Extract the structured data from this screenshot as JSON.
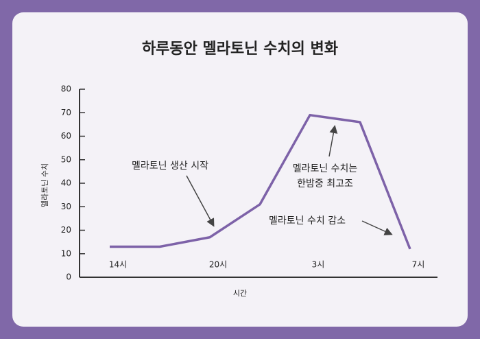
{
  "chart_data": {
    "type": "line",
    "title": "하루동안 멜라토닌 수치의 변화",
    "x_label": "시간",
    "y_label": "멜라토닌 수치",
    "categories": [
      "14시",
      null,
      "20시",
      null,
      "3시",
      null,
      "7시"
    ],
    "series": [
      {
        "name": "멜라토닌 수치",
        "color": "#7d62a8",
        "values": [
          13,
          13,
          17,
          31,
          69,
          66,
          12
        ]
      }
    ],
    "ylim": [
      0,
      80
    ],
    "yticks": [
      0,
      10,
      20,
      30,
      40,
      50,
      60,
      70,
      80
    ],
    "annotations": [
      [
        "멜라토닌 생산 시작"
      ],
      [
        "멜라토닌 수치는",
        "한밤중 최고조"
      ],
      [
        "멜라토닌 수치 감소"
      ]
    ]
  }
}
